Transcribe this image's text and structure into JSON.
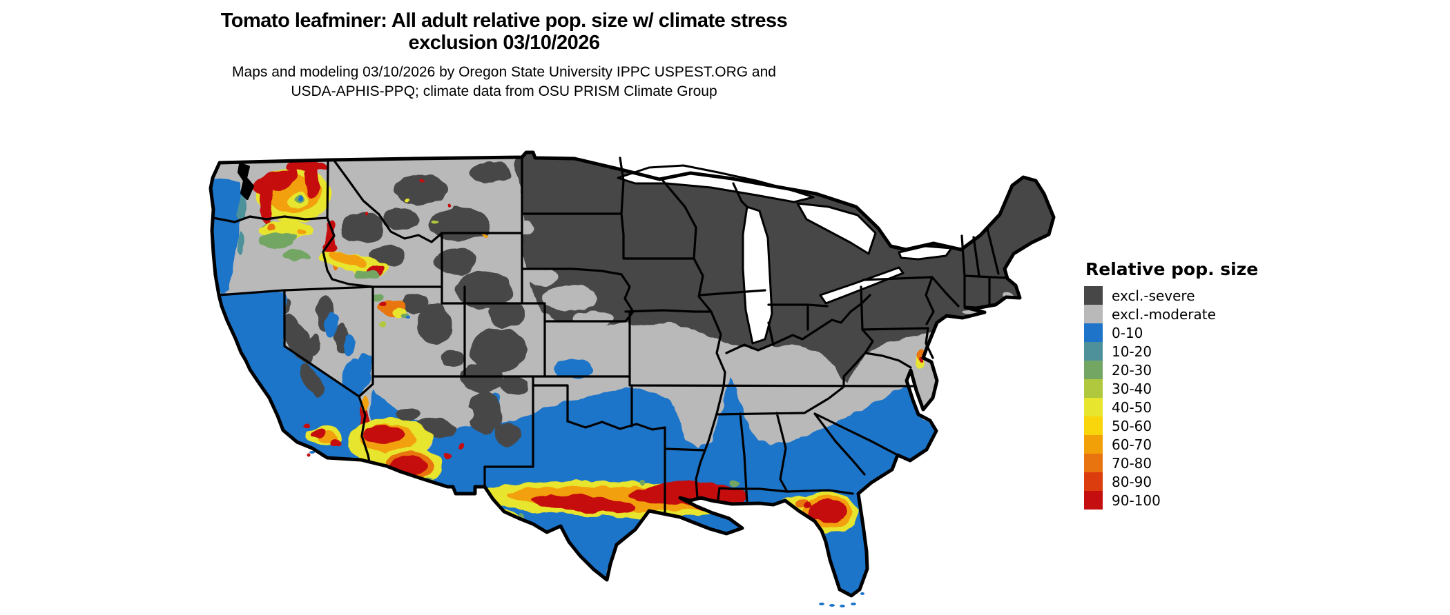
{
  "header": {
    "title_line1": "Tomato leafminer: All adult relative pop. size w/ climate stress",
    "title_line2": "exclusion 03/10/2026",
    "subtitle_line1": "Maps and modeling 03/10/2026 by Oregon State University IPPC USPEST.ORG and",
    "subtitle_line2": "USDA-APHIS-PPQ; climate data from OSU PRISM Climate Group"
  },
  "legend": {
    "title": "Relative pop. size",
    "items": [
      {
        "label": "excl.-severe",
        "color": "#474747"
      },
      {
        "label": "excl.-moderate",
        "color": "#B9B9B9"
      },
      {
        "label": "0-10",
        "color": "#1D74C9"
      },
      {
        "label": "10-20",
        "color": "#4E919B"
      },
      {
        "label": "20-30",
        "color": "#73A663"
      },
      {
        "label": "30-40",
        "color": "#AFC83D"
      },
      {
        "label": "40-50",
        "color": "#E8E52E"
      },
      {
        "label": "50-60",
        "color": "#F8D60B"
      },
      {
        "label": "60-70",
        "color": "#F2A007"
      },
      {
        "label": "70-80",
        "color": "#E8740F"
      },
      {
        "label": "80-90",
        "color": "#DC3D0E"
      },
      {
        "label": "90-100",
        "color": "#C50E0F"
      }
    ]
  },
  "map": {
    "area": "Continental United States (lower 48 states) with state boundaries",
    "type": "raster choropleth of relative adult population size",
    "border_color": "#000000",
    "water_color": "#ffffff",
    "notable_zones": {
      "excluded_severe": "northern tier, upper Midwest, Northeast, northern Rockies",
      "excluded_moderate": "central plains, mid-South, interior West basins",
      "low_population_0_10": "southern tier, Pacific coast, Southeast",
      "high_population_hotspots": "Columbia Basin WA/OR, Snake River Plain ID, southern Arizona, coastal southern California, central Texas to Louisiana Gulf Coast band, north-central Florida, Chesapeake urban area"
    }
  }
}
